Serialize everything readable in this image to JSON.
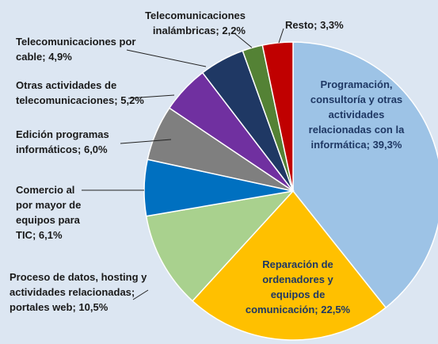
{
  "chart_data": {
    "type": "pie",
    "categories": [
      "Programación, consultoría y otras actividades relacionadas con la informática;",
      "Reparación de ordenadores y equipos de comunicación;",
      "Proceso de datos, hosting y actividades relacionadas; portales web;",
      "Comercio al por mayor de equipos para TIC;",
      "Edición programas informáticos;",
      "Otras actividades de telecomunicaciones;",
      "Telecomunicaciones por cable;",
      "Telecomunicaciones inalámbricas;",
      "Resto;"
    ],
    "values": [
      39.3,
      22.5,
      10.5,
      6.1,
      6.0,
      5.2,
      4.9,
      2.2,
      3.3
    ],
    "value_labels": [
      "39,3%",
      "22,5%",
      "10,5%",
      "6,1%",
      "6,0%",
      "5,2%",
      "4,9%",
      "2,2%",
      "3,3%"
    ],
    "colors": [
      "#9dc3e6",
      "#ffc000",
      "#a9d18e",
      "#0070c0",
      "#7f7f7f",
      "#7030a0",
      "#1f3864",
      "#548235",
      "#c00000"
    ]
  }
}
